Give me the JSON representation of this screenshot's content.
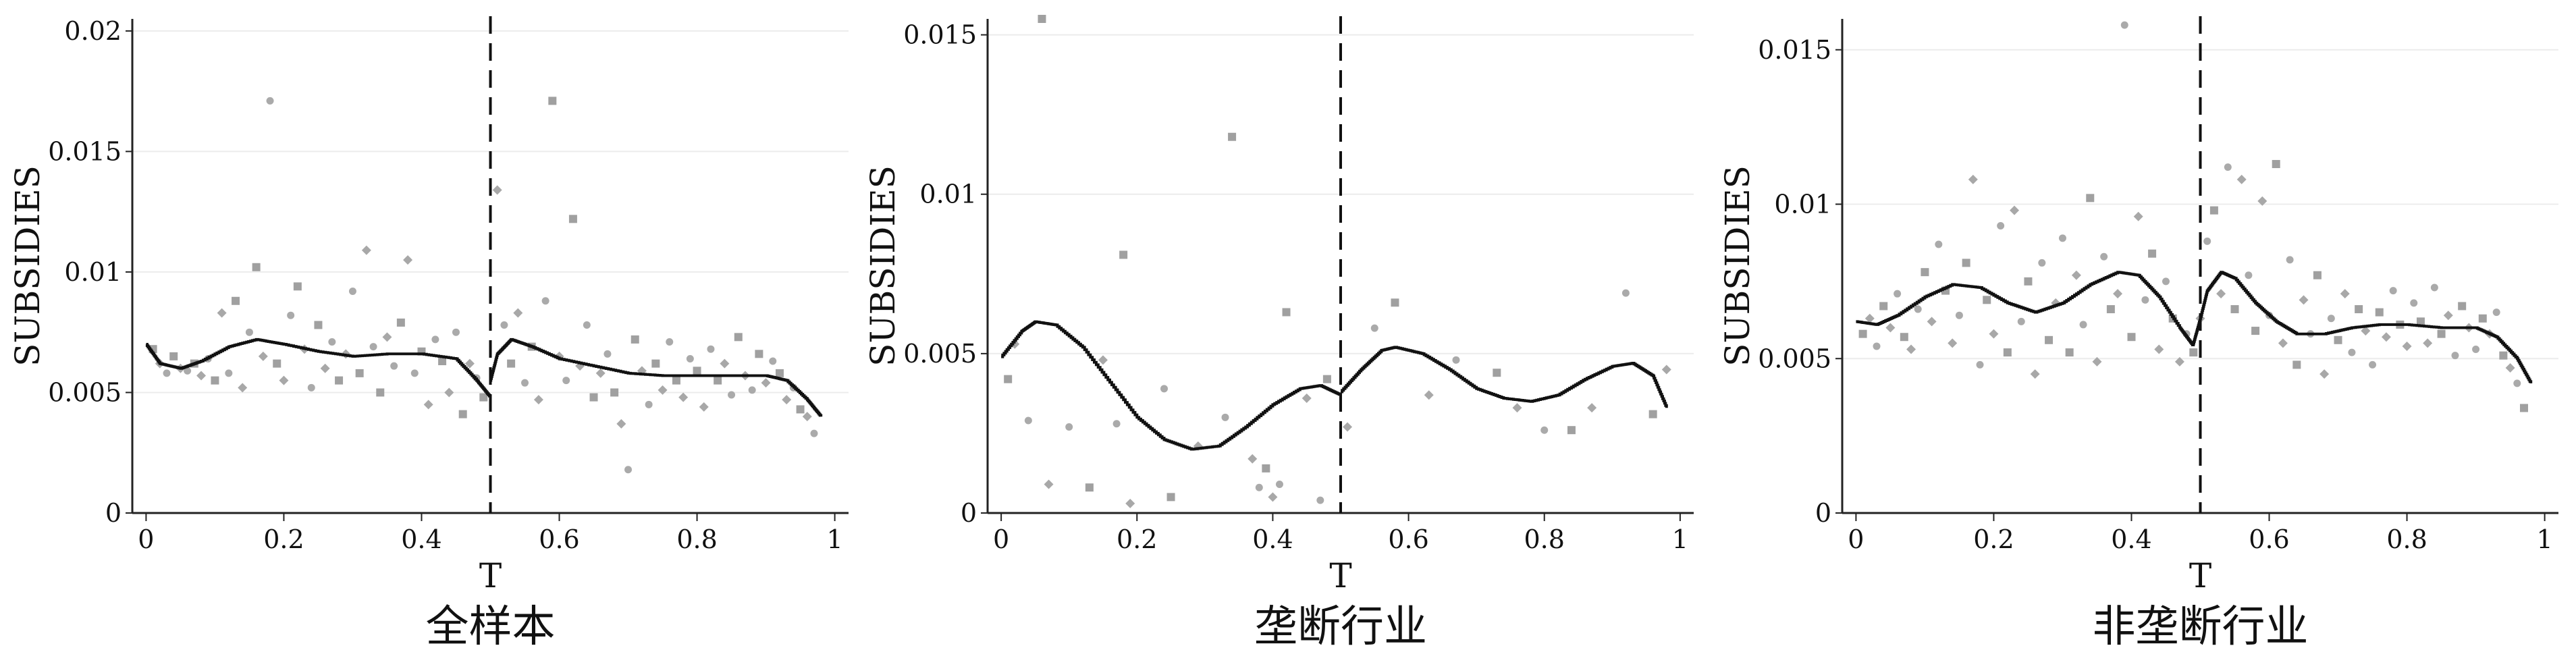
{
  "chart_data": [
    {
      "type": "scatter",
      "title": "全样本",
      "xlabel": "T",
      "ylabel": "SUBSIDIES",
      "xlim": [
        0,
        1
      ],
      "ylim": [
        0,
        0.0205
      ],
      "x_ticks": [
        "0",
        "0.2",
        "0.4",
        "0.6",
        "0.8",
        "1"
      ],
      "y_ticks": [
        "0",
        "0.005",
        "0.01",
        "0.015",
        "0.02"
      ],
      "cutoff": 0.5,
      "grid": "horizontal",
      "points": [
        [
          0.01,
          0.0068
        ],
        [
          0.02,
          0.0062
        ],
        [
          0.03,
          0.0058
        ],
        [
          0.04,
          0.0065
        ],
        [
          0.05,
          0.006
        ],
        [
          0.06,
          0.0059
        ],
        [
          0.07,
          0.0062
        ],
        [
          0.08,
          0.0057
        ],
        [
          0.09,
          0.0064
        ],
        [
          0.1,
          0.0055
        ],
        [
          0.11,
          0.0083
        ],
        [
          0.12,
          0.0058
        ],
        [
          0.13,
          0.0088
        ],
        [
          0.14,
          0.0052
        ],
        [
          0.15,
          0.0075
        ],
        [
          0.16,
          0.0102
        ],
        [
          0.17,
          0.0065
        ],
        [
          0.18,
          0.0171
        ],
        [
          0.19,
          0.0062
        ],
        [
          0.2,
          0.0055
        ],
        [
          0.21,
          0.0082
        ],
        [
          0.22,
          0.0094
        ],
        [
          0.23,
          0.0068
        ],
        [
          0.24,
          0.0052
        ],
        [
          0.25,
          0.0078
        ],
        [
          0.26,
          0.006
        ],
        [
          0.27,
          0.0071
        ],
        [
          0.28,
          0.0055
        ],
        [
          0.29,
          0.0066
        ],
        [
          0.3,
          0.0092
        ],
        [
          0.31,
          0.0058
        ],
        [
          0.32,
          0.0109
        ],
        [
          0.33,
          0.0069
        ],
        [
          0.34,
          0.005
        ],
        [
          0.35,
          0.0073
        ],
        [
          0.36,
          0.0061
        ],
        [
          0.37,
          0.0079
        ],
        [
          0.38,
          0.0105
        ],
        [
          0.39,
          0.0058
        ],
        [
          0.4,
          0.0067
        ],
        [
          0.41,
          0.0045
        ],
        [
          0.42,
          0.0072
        ],
        [
          0.43,
          0.0063
        ],
        [
          0.44,
          0.005
        ],
        [
          0.45,
          0.0075
        ],
        [
          0.46,
          0.0041
        ],
        [
          0.47,
          0.0062
        ],
        [
          0.48,
          0.0056
        ],
        [
          0.49,
          0.0048
        ],
        [
          0.51,
          0.0134
        ],
        [
          0.52,
          0.0078
        ],
        [
          0.53,
          0.0062
        ],
        [
          0.54,
          0.0083
        ],
        [
          0.55,
          0.0054
        ],
        [
          0.56,
          0.0069
        ],
        [
          0.57,
          0.0047
        ],
        [
          0.58,
          0.0088
        ],
        [
          0.59,
          0.0171
        ],
        [
          0.6,
          0.0065
        ],
        [
          0.61,
          0.0055
        ],
        [
          0.62,
          0.0122
        ],
        [
          0.63,
          0.0061
        ],
        [
          0.64,
          0.0078
        ],
        [
          0.65,
          0.0048
        ],
        [
          0.66,
          0.0058
        ],
        [
          0.67,
          0.0066
        ],
        [
          0.68,
          0.005
        ],
        [
          0.69,
          0.0037
        ],
        [
          0.7,
          0.0018
        ],
        [
          0.71,
          0.0072
        ],
        [
          0.72,
          0.0059
        ],
        [
          0.73,
          0.0045
        ],
        [
          0.74,
          0.0062
        ],
        [
          0.75,
          0.0051
        ],
        [
          0.76,
          0.0071
        ],
        [
          0.77,
          0.0055
        ],
        [
          0.78,
          0.0048
        ],
        [
          0.79,
          0.0064
        ],
        [
          0.8,
          0.0059
        ],
        [
          0.81,
          0.0044
        ],
        [
          0.82,
          0.0068
        ],
        [
          0.83,
          0.0055
        ],
        [
          0.84,
          0.0062
        ],
        [
          0.85,
          0.0049
        ],
        [
          0.86,
          0.0073
        ],
        [
          0.87,
          0.0057
        ],
        [
          0.88,
          0.0051
        ],
        [
          0.89,
          0.0066
        ],
        [
          0.9,
          0.0054
        ],
        [
          0.91,
          0.0063
        ],
        [
          0.92,
          0.0058
        ],
        [
          0.93,
          0.0047
        ],
        [
          0.94,
          0.0052
        ],
        [
          0.95,
          0.0043
        ],
        [
          0.96,
          0.004
        ],
        [
          0.97,
          0.0033
        ]
      ],
      "fit_left": [
        [
          0,
          0.007
        ],
        [
          0.02,
          0.0062
        ],
        [
          0.05,
          0.006
        ],
        [
          0.08,
          0.0063
        ],
        [
          0.12,
          0.0069
        ],
        [
          0.16,
          0.0072
        ],
        [
          0.2,
          0.007
        ],
        [
          0.25,
          0.0067
        ],
        [
          0.3,
          0.0065
        ],
        [
          0.35,
          0.0066
        ],
        [
          0.4,
          0.0066
        ],
        [
          0.45,
          0.0064
        ],
        [
          0.48,
          0.0055
        ],
        [
          0.5,
          0.0048
        ]
      ],
      "fit_right": [
        [
          0.5,
          0.0055
        ],
        [
          0.51,
          0.0066
        ],
        [
          0.53,
          0.0072
        ],
        [
          0.56,
          0.0069
        ],
        [
          0.6,
          0.0064
        ],
        [
          0.65,
          0.0061
        ],
        [
          0.7,
          0.0058
        ],
        [
          0.75,
          0.0057
        ],
        [
          0.8,
          0.0057
        ],
        [
          0.85,
          0.0057
        ],
        [
          0.9,
          0.0057
        ],
        [
          0.93,
          0.0055
        ],
        [
          0.96,
          0.0047
        ],
        [
          0.98,
          0.004
        ]
      ]
    },
    {
      "type": "scatter",
      "title": "垄断行业",
      "xlabel": "T",
      "ylabel": "SUBSIDIES",
      "xlim": [
        0,
        1
      ],
      "ylim": [
        0,
        0.0155
      ],
      "x_ticks": [
        "0",
        "0.2",
        "0.4",
        "0.6",
        "0.8",
        "1"
      ],
      "y_ticks": [
        "0",
        "0.005",
        "0.01",
        "0.015"
      ],
      "cutoff": 0.5,
      "grid": "horizontal",
      "points": [
        [
          0.01,
          0.0042
        ],
        [
          0.02,
          0.0053
        ],
        [
          0.04,
          0.0029
        ],
        [
          0.06,
          0.0155
        ],
        [
          0.07,
          0.0009
        ],
        [
          0.1,
          0.0027
        ],
        [
          0.13,
          0.0008
        ],
        [
          0.15,
          0.0048
        ],
        [
          0.17,
          0.0028
        ],
        [
          0.18,
          0.0081
        ],
        [
          0.19,
          0.0003
        ],
        [
          0.24,
          0.0039
        ],
        [
          0.25,
          0.0005
        ],
        [
          0.29,
          0.0021
        ],
        [
          0.33,
          0.003
        ],
        [
          0.34,
          0.0118
        ],
        [
          0.37,
          0.0017
        ],
        [
          0.38,
          0.0008
        ],
        [
          0.39,
          0.0014
        ],
        [
          0.4,
          0.0005
        ],
        [
          0.41,
          0.0009
        ],
        [
          0.42,
          0.0063
        ],
        [
          0.45,
          0.0036
        ],
        [
          0.47,
          0.0004
        ],
        [
          0.48,
          0.0042
        ],
        [
          0.51,
          0.0027
        ],
        [
          0.55,
          0.0058
        ],
        [
          0.58,
          0.0066
        ],
        [
          0.63,
          0.0037
        ],
        [
          0.67,
          0.0048
        ],
        [
          0.73,
          0.0044
        ],
        [
          0.76,
          0.0033
        ],
        [
          0.8,
          0.0026
        ],
        [
          0.84,
          0.0026
        ],
        [
          0.87,
          0.0033
        ],
        [
          0.92,
          0.0069
        ],
        [
          0.96,
          0.0031
        ],
        [
          0.98,
          0.0045
        ]
      ],
      "fit_left": [
        [
          0,
          0.0049
        ],
        [
          0.03,
          0.0057
        ],
        [
          0.05,
          0.006
        ],
        [
          0.08,
          0.0059
        ],
        [
          0.12,
          0.0052
        ],
        [
          0.16,
          0.0041
        ],
        [
          0.2,
          0.003
        ],
        [
          0.24,
          0.0023
        ],
        [
          0.28,
          0.002
        ],
        [
          0.32,
          0.0021
        ],
        [
          0.36,
          0.0027
        ],
        [
          0.4,
          0.0034
        ],
        [
          0.44,
          0.0039
        ],
        [
          0.47,
          0.004
        ],
        [
          0.5,
          0.0037
        ]
      ],
      "fit_right": [
        [
          0.5,
          0.0038
        ],
        [
          0.53,
          0.0045
        ],
        [
          0.56,
          0.0051
        ],
        [
          0.58,
          0.0052
        ],
        [
          0.62,
          0.005
        ],
        [
          0.66,
          0.0045
        ],
        [
          0.7,
          0.0039
        ],
        [
          0.74,
          0.0036
        ],
        [
          0.78,
          0.0035
        ],
        [
          0.82,
          0.0037
        ],
        [
          0.86,
          0.0042
        ],
        [
          0.9,
          0.0046
        ],
        [
          0.93,
          0.0047
        ],
        [
          0.96,
          0.0043
        ],
        [
          0.98,
          0.0033
        ]
      ]
    },
    {
      "type": "scatter",
      "title": "非垄断行业",
      "xlabel": "T",
      "ylabel": "SUBSIDIES",
      "xlim": [
        0,
        1
      ],
      "ylim": [
        0,
        0.016
      ],
      "x_ticks": [
        "0",
        "0.2",
        "0.4",
        "0.6",
        "0.8",
        "1"
      ],
      "y_ticks": [
        "0",
        "0.005",
        "0.01",
        "0.015"
      ],
      "cutoff": 0.5,
      "grid": "horizontal",
      "points": [
        [
          0.01,
          0.0058
        ],
        [
          0.02,
          0.0063
        ],
        [
          0.03,
          0.0054
        ],
        [
          0.04,
          0.0067
        ],
        [
          0.05,
          0.006
        ],
        [
          0.06,
          0.0071
        ],
        [
          0.07,
          0.0057
        ],
        [
          0.08,
          0.0053
        ],
        [
          0.09,
          0.0066
        ],
        [
          0.1,
          0.0078
        ],
        [
          0.11,
          0.0062
        ],
        [
          0.12,
          0.0087
        ],
        [
          0.13,
          0.0072
        ],
        [
          0.14,
          0.0055
        ],
        [
          0.15,
          0.0064
        ],
        [
          0.16,
          0.0081
        ],
        [
          0.17,
          0.0108
        ],
        [
          0.18,
          0.0048
        ],
        [
          0.19,
          0.0069
        ],
        [
          0.2,
          0.0058
        ],
        [
          0.21,
          0.0093
        ],
        [
          0.22,
          0.0052
        ],
        [
          0.23,
          0.0098
        ],
        [
          0.24,
          0.0062
        ],
        [
          0.25,
          0.0075
        ],
        [
          0.26,
          0.0045
        ],
        [
          0.27,
          0.0081
        ],
        [
          0.28,
          0.0056
        ],
        [
          0.29,
          0.0068
        ],
        [
          0.3,
          0.0089
        ],
        [
          0.31,
          0.0052
        ],
        [
          0.32,
          0.0077
        ],
        [
          0.33,
          0.0061
        ],
        [
          0.34,
          0.0102
        ],
        [
          0.35,
          0.0049
        ],
        [
          0.36,
          0.0083
        ],
        [
          0.37,
          0.0066
        ],
        [
          0.38,
          0.0071
        ],
        [
          0.39,
          0.0158
        ],
        [
          0.4,
          0.0057
        ],
        [
          0.41,
          0.0096
        ],
        [
          0.42,
          0.0069
        ],
        [
          0.43,
          0.0084
        ],
        [
          0.44,
          0.0053
        ],
        [
          0.45,
          0.0075
        ],
        [
          0.46,
          0.0063
        ],
        [
          0.47,
          0.0049
        ],
        [
          0.48,
          0.0058
        ],
        [
          0.49,
          0.0052
        ],
        [
          0.5,
          0.0063
        ],
        [
          0.51,
          0.0088
        ],
        [
          0.52,
          0.0098
        ],
        [
          0.53,
          0.0071
        ],
        [
          0.54,
          0.0112
        ],
        [
          0.55,
          0.0066
        ],
        [
          0.56,
          0.0108
        ],
        [
          0.57,
          0.0077
        ],
        [
          0.58,
          0.0059
        ],
        [
          0.59,
          0.0101
        ],
        [
          0.6,
          0.0064
        ],
        [
          0.61,
          0.0113
        ],
        [
          0.62,
          0.0055
        ],
        [
          0.63,
          0.0082
        ],
        [
          0.64,
          0.0048
        ],
        [
          0.65,
          0.0069
        ],
        [
          0.66,
          0.0058
        ],
        [
          0.67,
          0.0077
        ],
        [
          0.68,
          0.0045
        ],
        [
          0.69,
          0.0063
        ],
        [
          0.7,
          0.0056
        ],
        [
          0.71,
          0.0071
        ],
        [
          0.72,
          0.0052
        ],
        [
          0.73,
          0.0066
        ],
        [
          0.74,
          0.0059
        ],
        [
          0.75,
          0.0048
        ],
        [
          0.76,
          0.0065
        ],
        [
          0.77,
          0.0057
        ],
        [
          0.78,
          0.0072
        ],
        [
          0.79,
          0.0061
        ],
        [
          0.8,
          0.0054
        ],
        [
          0.81,
          0.0068
        ],
        [
          0.82,
          0.0062
        ],
        [
          0.83,
          0.0055
        ],
        [
          0.84,
          0.0073
        ],
        [
          0.85,
          0.0058
        ],
        [
          0.86,
          0.0064
        ],
        [
          0.87,
          0.0051
        ],
        [
          0.88,
          0.0067
        ],
        [
          0.89,
          0.006
        ],
        [
          0.9,
          0.0053
        ],
        [
          0.91,
          0.0063
        ],
        [
          0.92,
          0.0058
        ],
        [
          0.93,
          0.0065
        ],
        [
          0.94,
          0.0051
        ],
        [
          0.95,
          0.0047
        ],
        [
          0.96,
          0.0042
        ],
        [
          0.97,
          0.0034
        ]
      ],
      "fit_left": [
        [
          0,
          0.0062
        ],
        [
          0.03,
          0.0061
        ],
        [
          0.06,
          0.0064
        ],
        [
          0.1,
          0.007
        ],
        [
          0.14,
          0.0074
        ],
        [
          0.18,
          0.0073
        ],
        [
          0.22,
          0.0068
        ],
        [
          0.26,
          0.0065
        ],
        [
          0.3,
          0.0068
        ],
        [
          0.34,
          0.0074
        ],
        [
          0.38,
          0.0078
        ],
        [
          0.41,
          0.0077
        ],
        [
          0.44,
          0.007
        ],
        [
          0.47,
          0.006
        ],
        [
          0.49,
          0.0054
        ]
      ],
      "fit_right": [
        [
          0.49,
          0.0055
        ],
        [
          0.5,
          0.0063
        ],
        [
          0.51,
          0.0072
        ],
        [
          0.53,
          0.0078
        ],
        [
          0.55,
          0.0076
        ],
        [
          0.58,
          0.0068
        ],
        [
          0.61,
          0.0062
        ],
        [
          0.64,
          0.0058
        ],
        [
          0.68,
          0.0058
        ],
        [
          0.72,
          0.006
        ],
        [
          0.76,
          0.0061
        ],
        [
          0.8,
          0.0061
        ],
        [
          0.85,
          0.006
        ],
        [
          0.9,
          0.006
        ],
        [
          0.93,
          0.0057
        ],
        [
          0.96,
          0.005
        ],
        [
          0.98,
          0.0042
        ]
      ]
    }
  ]
}
